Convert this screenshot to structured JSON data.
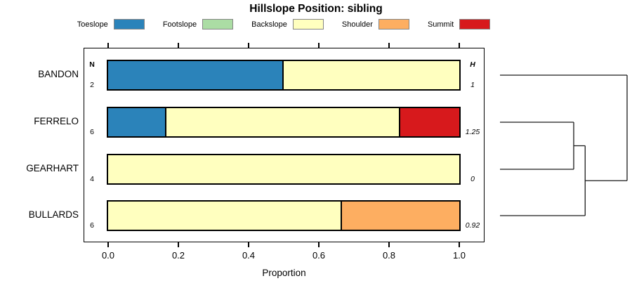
{
  "title": "Hillslope Position: sibling",
  "legend": {
    "items": [
      {
        "label": "Toeslope",
        "color": "#2B83BA"
      },
      {
        "label": "Footslope",
        "color": "#ABDDA4"
      },
      {
        "label": "Backslope",
        "color": "#FFFFBF"
      },
      {
        "label": "Shoulder",
        "color": "#FDAE61"
      },
      {
        "label": "Summit",
        "color": "#D7191C"
      }
    ]
  },
  "columns": {
    "n_header": "N",
    "h_header": "H"
  },
  "x_axis": {
    "label": "Proportion",
    "ticks": [
      0,
      0.2,
      0.4,
      0.6,
      0.8,
      1
    ],
    "tick_labels": [
      "0.0",
      "0.2",
      "0.4",
      "0.6",
      "0.8",
      "1.0"
    ],
    "range": [
      0,
      1
    ]
  },
  "chart_data": {
    "type": "bar",
    "variant": "horizontal-stacked-proportion",
    "title": "Hillslope Position: sibling",
    "xlabel": "Proportion",
    "xlim": [
      0,
      1
    ],
    "xticks": [
      0,
      0.2,
      0.4,
      0.6,
      0.8,
      1
    ],
    "grid": false,
    "legend_position": "top",
    "series_order": [
      "Toeslope",
      "Footslope",
      "Backslope",
      "Shoulder",
      "Summit"
    ],
    "series_colors": {
      "Toeslope": "#2B83BA",
      "Footslope": "#ABDDA4",
      "Backslope": "#FFFFBF",
      "Shoulder": "#FDAE61",
      "Summit": "#D7191C"
    },
    "categories": [
      "BANDON",
      "FERRELO",
      "GEARHART",
      "BULLARDS"
    ],
    "rows": [
      {
        "name": "BANDON",
        "n": "2",
        "h": "1",
        "segments": [
          {
            "series": "Toeslope",
            "value": 0.5
          },
          {
            "series": "Backslope",
            "value": 0.5
          }
        ]
      },
      {
        "name": "FERRELO",
        "n": "6",
        "h": "1.25",
        "segments": [
          {
            "series": "Toeslope",
            "value": 0.1667
          },
          {
            "series": "Backslope",
            "value": 0.6667
          },
          {
            "series": "Summit",
            "value": 0.1667
          }
        ]
      },
      {
        "name": "GEARHART",
        "n": "4",
        "h": "0",
        "segments": [
          {
            "series": "Backslope",
            "value": 1
          }
        ]
      },
      {
        "name": "BULLARDS",
        "n": "6",
        "h": "0.92",
        "segments": [
          {
            "series": "Backslope",
            "value": 0.6667
          },
          {
            "series": "Shoulder",
            "value": 0.3333
          }
        ]
      }
    ]
  },
  "dendrogram": {
    "leaves": [
      "BANDON",
      "FERRELO",
      "GEARHART",
      "BULLARDS"
    ],
    "merges": [
      {
        "a": "FERRELO",
        "b": "GEARHART",
        "height": 0.58
      },
      {
        "a": "merge-0",
        "b": "BULLARDS",
        "height": 0.67
      },
      {
        "a": "merge-1",
        "b": "BANDON",
        "height": 1.0
      }
    ]
  }
}
